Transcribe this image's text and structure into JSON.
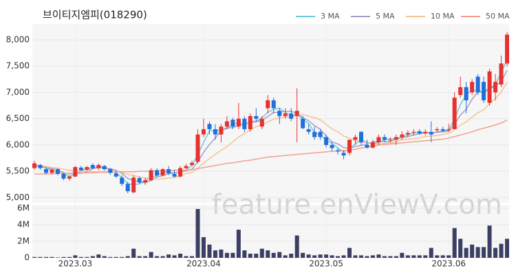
{
  "chart_data": {
    "type": "candlestick",
    "title": "브이티지엠피(018290)",
    "watermark": "feature.enViewV.com",
    "categories": [
      null,
      null,
      null,
      null,
      null,
      null,
      null,
      "2023.03",
      null,
      null,
      null,
      null,
      null,
      null,
      null,
      null,
      null,
      null,
      null,
      null,
      null,
      null,
      null,
      null,
      null,
      null,
      null,
      null,
      null,
      "2023.04",
      null,
      null,
      null,
      null,
      null,
      null,
      null,
      null,
      null,
      null,
      null,
      null,
      null,
      null,
      null,
      null,
      null,
      null,
      null,
      null,
      "2023.05",
      null,
      null,
      null,
      null,
      null,
      null,
      null,
      null,
      null,
      null,
      null,
      null,
      null,
      null,
      null,
      null,
      null,
      null,
      null,
      null,
      "2023.06",
      null,
      null,
      null,
      null,
      null,
      null,
      null,
      null,
      null,
      null
    ],
    "open": [
      5560,
      5620,
      5540,
      5470,
      5540,
      5450,
      5360,
      5400,
      5570,
      5530,
      5620,
      5560,
      5600,
      5540,
      5460,
      5380,
      5260,
      5100,
      5370,
      5290,
      5330,
      5520,
      5420,
      5540,
      5450,
      5400,
      5560,
      5620,
      5680,
      6200,
      6400,
      6300,
      6200,
      6350,
      6480,
      6350,
      6500,
      6300,
      6550,
      6350,
      6700,
      6850,
      6650,
      6550,
      6600,
      6550,
      6500,
      6300,
      6250,
      6250,
      6150,
      6000,
      5900,
      5850,
      5850,
      6100,
      6250,
      6000,
      5950,
      6050,
      6150,
      6100,
      6100,
      6150,
      6200,
      6240,
      6260,
      6220,
      6250,
      6280,
      6300,
      6280,
      6300,
      6950,
      7100,
      7000,
      7300,
      7200,
      6800,
      7000,
      7150,
      7550
    ],
    "high": [
      5700,
      5640,
      5560,
      5550,
      5560,
      5480,
      5420,
      5600,
      5600,
      5600,
      5650,
      5650,
      5620,
      5560,
      5500,
      5420,
      5300,
      5420,
      5400,
      5380,
      5560,
      5560,
      5560,
      5600,
      5530,
      5600,
      5640,
      5700,
      6300,
      6500,
      6450,
      6400,
      6400,
      6550,
      6520,
      6800,
      6550,
      6600,
      6700,
      6550,
      6950,
      6900,
      6700,
      6700,
      6700,
      7080,
      6550,
      6400,
      6350,
      6300,
      6200,
      6050,
      5950,
      5900,
      6100,
      6200,
      6260,
      6100,
      6100,
      6200,
      6200,
      6150,
      6200,
      6260,
      6280,
      6300,
      6300,
      6300,
      6450,
      6340,
      6350,
      6400,
      7000,
      7300,
      7200,
      7250,
      7350,
      7300,
      7450,
      7350,
      7700,
      8150
    ],
    "low": [
      5530,
      5530,
      5440,
      5450,
      5420,
      5330,
      5320,
      5390,
      5500,
      5500,
      5540,
      5520,
      5520,
      5430,
      5380,
      5220,
      5080,
      5080,
      5260,
      5240,
      5310,
      5390,
      5400,
      5430,
      5380,
      5380,
      5540,
      5600,
      5650,
      6150,
      6200,
      6100,
      6050,
      6300,
      6300,
      6300,
      6250,
      6250,
      6450,
      6300,
      6600,
      6600,
      6400,
      6500,
      6450,
      6050,
      6300,
      6200,
      6100,
      6100,
      5950,
      5880,
      5820,
      5730,
      5800,
      6000,
      6000,
      5930,
      5930,
      6000,
      6050,
      6050,
      6000,
      6100,
      6150,
      6180,
      6200,
      6180,
      6050,
      6250,
      6250,
      6250,
      6300,
      6900,
      6600,
      6950,
      6950,
      6800,
      6750,
      6850,
      7100,
      7500
    ],
    "close": [
      5650,
      5560,
      5470,
      5530,
      5450,
      5360,
      5400,
      5580,
      5520,
      5580,
      5560,
      5620,
      5540,
      5470,
      5400,
      5260,
      5120,
      5380,
      5290,
      5330,
      5520,
      5420,
      5540,
      5460,
      5400,
      5560,
      5600,
      5660,
      6200,
      6300,
      6300,
      6200,
      6350,
      6450,
      6350,
      6500,
      6300,
      6550,
      6500,
      6500,
      6850,
      6700,
      6550,
      6600,
      6500,
      6650,
      6320,
      6250,
      6150,
      6150,
      6000,
      5940,
      5880,
      5800,
      6100,
      6150,
      6050,
      5950,
      6050,
      6150,
      6100,
      6100,
      6150,
      6200,
      6230,
      6250,
      6220,
      6250,
      6200,
      6300,
      6270,
      6300,
      6900,
      7100,
      6850,
      7200,
      7000,
      6850,
      7400,
      7200,
      7550,
      8100
    ],
    "volume": [
      100000,
      100000,
      100000,
      100000,
      50000,
      100000,
      100000,
      300000,
      100000,
      100000,
      200000,
      400000,
      200000,
      100000,
      100000,
      100000,
      200000,
      1100000,
      200000,
      200000,
      700000,
      200000,
      200000,
      400000,
      300000,
      500000,
      200000,
      200000,
      5900000,
      2500000,
      1600000,
      900000,
      1000000,
      600000,
      600000,
      3400000,
      900000,
      500000,
      500000,
      1100000,
      900000,
      600000,
      700000,
      300000,
      500000,
      2700000,
      600000,
      400000,
      300000,
      400000,
      400000,
      300000,
      200000,
      300000,
      1200000,
      300000,
      300000,
      200000,
      300000,
      400000,
      200000,
      200000,
      200000,
      600000,
      300000,
      300000,
      300000,
      300000,
      1200000,
      300000,
      300000,
      300000,
      3600000,
      2300000,
      1200000,
      1600000,
      1300000,
      1300000,
      3900000,
      1200000,
      1700000,
      2300000
    ],
    "up_color": "#e8312f",
    "down_color": "#1f6fdc",
    "ylim": [
      4900,
      8300
    ],
    "yticks": [
      {
        "value": 5000,
        "label": "5,000"
      },
      {
        "value": 5500,
        "label": "5,500"
      },
      {
        "value": 6000,
        "label": "6,000"
      },
      {
        "value": 6500,
        "label": "6,500"
      },
      {
        "value": 7000,
        "label": "7,000"
      },
      {
        "value": 7500,
        "label": "7,500"
      },
      {
        "value": 8000,
        "label": "8,000"
      }
    ],
    "volume_ylim": [
      0,
      6400000
    ],
    "volume_yticks": [
      0,
      {
        "value": 2000000,
        "label": "2M"
      },
      {
        "value": 4000000,
        "label": "4M"
      },
      {
        "value": 6000000,
        "label": "6M"
      }
    ],
    "volume_color": "#3b3f63",
    "grid": true,
    "series": [
      {
        "name": "3 MA",
        "color": "#6cc9dc",
        "values": [
          5620,
          5590,
          5560,
          5520,
          5480,
          5450,
          5400,
          5450,
          5500,
          5560,
          5550,
          5590,
          5570,
          5540,
          5470,
          5380,
          5260,
          5250,
          5260,
          5330,
          5380,
          5420,
          5490,
          5470,
          5470,
          5470,
          5520,
          5610,
          5820,
          6050,
          6270,
          6270,
          6280,
          6330,
          6380,
          6430,
          6380,
          6450,
          6450,
          6520,
          6620,
          6680,
          6700,
          6620,
          6550,
          6580,
          6490,
          6410,
          6240,
          6180,
          6100,
          6030,
          5940,
          5870,
          5930,
          6020,
          6100,
          6050,
          6020,
          6050,
          6100,
          6120,
          6120,
          6150,
          6190,
          6230,
          6230,
          6240,
          6220,
          6250,
          6260,
          6290,
          6490,
          6770,
          6950,
          7050,
          7020,
          7020,
          7080,
          7150,
          7380,
          7620
        ]
      },
      {
        "name": "5 MA",
        "color": "#a59cc8",
        "values": [
          5600,
          5590,
          5570,
          5550,
          5530,
          5470,
          5450,
          5460,
          5460,
          5490,
          5550,
          5570,
          5560,
          5550,
          5520,
          5460,
          5360,
          5330,
          5290,
          5280,
          5330,
          5390,
          5420,
          5450,
          5470,
          5480,
          5510,
          5540,
          5680,
          5860,
          6010,
          6130,
          6270,
          6320,
          6330,
          6370,
          6390,
          6430,
          6440,
          6470,
          6540,
          6620,
          6620,
          6640,
          6640,
          6600,
          6520,
          6460,
          6370,
          6300,
          6170,
          6060,
          6020,
          5950,
          5940,
          5970,
          5990,
          6010,
          6060,
          6070,
          6060,
          6070,
          6110,
          6140,
          6160,
          6190,
          6210,
          6230,
          6230,
          6240,
          6250,
          6260,
          6390,
          6570,
          6680,
          6870,
          7010,
          7000,
          7060,
          7130,
          7200,
          7420
        ]
      },
      {
        "name": "10 MA",
        "color": "#f2c48f",
        "values": [
          5620,
          5610,
          5590,
          5570,
          5560,
          5540,
          5520,
          5510,
          5500,
          5500,
          5490,
          5490,
          5500,
          5510,
          5500,
          5480,
          5440,
          5420,
          5390,
          5370,
          5360,
          5350,
          5360,
          5370,
          5380,
          5410,
          5460,
          5480,
          5560,
          5660,
          5740,
          5820,
          5900,
          5970,
          6060,
          6150,
          6220,
          6290,
          6350,
          6380,
          6440,
          6490,
          6520,
          6530,
          6540,
          6560,
          6580,
          6550,
          6520,
          6480,
          6390,
          6310,
          6250,
          6170,
          6130,
          6080,
          6060,
          6030,
          6020,
          6020,
          6030,
          6040,
          6060,
          6100,
          6110,
          6120,
          6140,
          6160,
          6170,
          6180,
          6200,
          6220,
          6290,
          6380,
          6440,
          6530,
          6610,
          6670,
          6790,
          6880,
          7010,
          7190
        ]
      },
      {
        "name": "50 MA",
        "color": "#f19f8b",
        "values": [
          5450,
          5450,
          5450,
          5450,
          5460,
          5460,
          5460,
          5460,
          5470,
          5470,
          5470,
          5480,
          5480,
          5480,
          5490,
          5490,
          5490,
          5490,
          5500,
          5500,
          5500,
          5510,
          5510,
          5510,
          5520,
          5520,
          5520,
          5530,
          5550,
          5570,
          5590,
          5610,
          5630,
          5650,
          5660,
          5680,
          5700,
          5710,
          5730,
          5750,
          5770,
          5780,
          5790,
          5800,
          5810,
          5820,
          5830,
          5840,
          5850,
          5860,
          5870,
          5880,
          5880,
          5890,
          5900,
          5920,
          5940,
          5960,
          5980,
          6000,
          6010,
          6020,
          6030,
          6040,
          6050,
          6060,
          6070,
          6080,
          6090,
          6100,
          6110,
          6130,
          6160,
          6190,
          6220,
          6250,
          6290,
          6320,
          6350,
          6380,
          6420,
          6470
        ]
      }
    ]
  }
}
